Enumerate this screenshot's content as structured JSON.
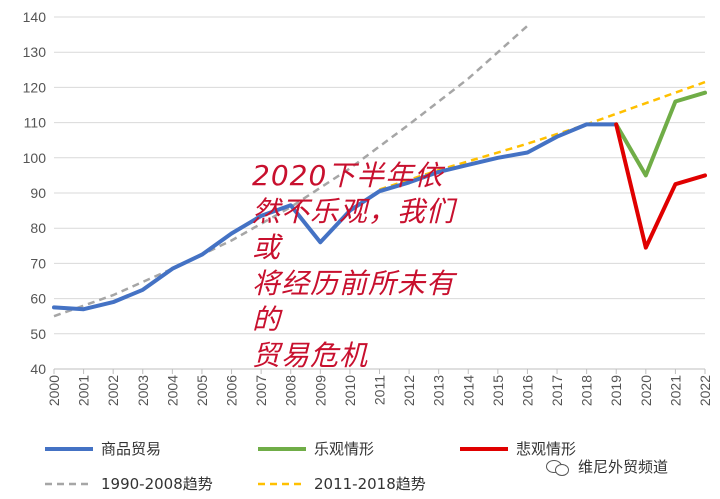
{
  "chart_data": {
    "type": "line",
    "title": "",
    "xlabel": "",
    "ylabel": "",
    "ylim": [
      40,
      140
    ],
    "yticks": [
      40,
      50,
      60,
      70,
      80,
      90,
      100,
      110,
      120,
      130,
      140
    ],
    "x": [
      2000,
      2001,
      2002,
      2003,
      2004,
      2005,
      2006,
      2007,
      2008,
      2009,
      2010,
      2011,
      2012,
      2013,
      2014,
      2015,
      2016,
      2017,
      2018,
      2019,
      2020,
      2021,
      2022
    ],
    "xtick_labels": [
      "2000",
      "2001",
      "2002",
      "2003",
      "2004",
      "2005",
      "2006",
      "2007",
      "2008",
      "2009",
      "2010",
      "2011",
      "2012",
      "2013",
      "2014",
      "2015",
      "2016",
      "2017",
      "2018",
      "2019",
      "2020",
      "2021",
      "2022"
    ],
    "grid": true,
    "legend_position": "bottom",
    "series": [
      {
        "name": "商品贸易",
        "color": "#4472c4",
        "style": "solid",
        "x": [
          2000,
          2001,
          2002,
          2003,
          2004,
          2005,
          2006,
          2007,
          2008,
          2009,
          2010,
          2011,
          2012,
          2013,
          2014,
          2015,
          2016,
          2017,
          2018,
          2019
        ],
        "y": [
          57.5,
          57,
          59,
          62.5,
          68.5,
          72.5,
          78.5,
          83.5,
          86.5,
          76,
          85,
          90.5,
          93,
          96,
          98,
          100,
          101.5,
          106,
          109.5,
          109.5
        ]
      },
      {
        "name": "乐观情形",
        "color": "#70ad47",
        "style": "solid",
        "x": [
          2019,
          2020,
          2021,
          2022
        ],
        "y": [
          109.5,
          95,
          116,
          118.5
        ]
      },
      {
        "name": "悲观情形",
        "color": "#e00000",
        "style": "solid",
        "x": [
          2019,
          2020,
          2021,
          2022
        ],
        "y": [
          109.5,
          74.5,
          92.5,
          95
        ]
      },
      {
        "name": "1990-2008趋势",
        "color": "#a6a6a6",
        "style": "dashed",
        "x": [
          2000,
          2002,
          2004,
          2006,
          2008,
          2010,
          2012,
          2014,
          2016
        ],
        "y": [
          55,
          61,
          68.5,
          76.5,
          86,
          97,
          109.5,
          122.5,
          137.5
        ]
      },
      {
        "name": "2011-2018趋势",
        "color": "#ffc000",
        "style": "dashed",
        "x": [
          2011,
          2013,
          2016,
          2018,
          2020,
          2022
        ],
        "y": [
          91,
          96.5,
          104,
          109.5,
          115.5,
          121.5
        ]
      }
    ]
  },
  "annotation": {
    "line1": "2020下半年依",
    "line2": "然不乐观，我们或",
    "line3": "将经历前所未有的",
    "line4": "贸易危机"
  },
  "watermark": {
    "text": "维尼外贸频道",
    "icon": "wechat-icon"
  }
}
